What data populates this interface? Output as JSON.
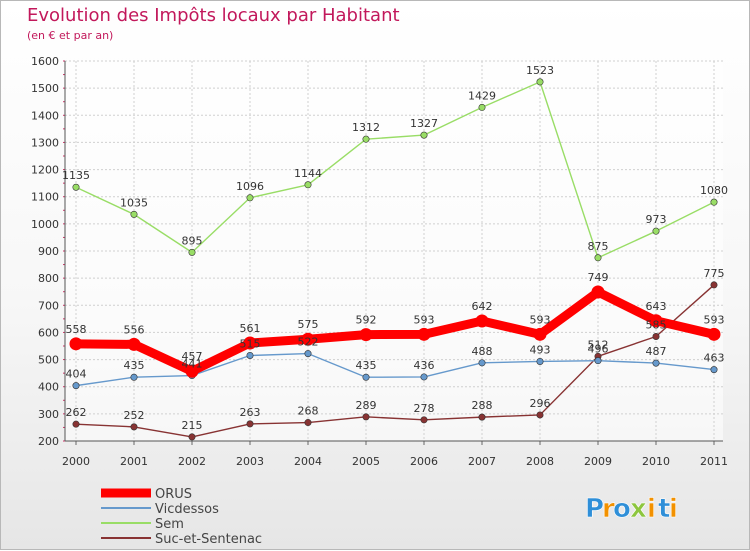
{
  "chart_data": {
    "type": "line",
    "title": "Evolution des Impôts locaux par Habitant",
    "subtitle": "(en € et par an)",
    "xlabel": "",
    "ylabel": "",
    "ylim": [
      200,
      1600
    ],
    "yticks": [
      "200",
      "300",
      "400",
      "500",
      "600",
      "700",
      "800",
      "900",
      "1000",
      "1100",
      "1200",
      "1300",
      "1400",
      "1500",
      "1600"
    ],
    "categories": [
      "2000",
      "2001",
      "2002",
      "2003",
      "2004",
      "2005",
      "2006",
      "2007",
      "2008",
      "2009",
      "2010",
      "2011"
    ],
    "grid": true,
    "legend_position": "bottom-left",
    "series": [
      {
        "name": "ORUS",
        "color": "#ff0000",
        "values": [
          558,
          556,
          457,
          561,
          575,
          592,
          593,
          642,
          593,
          749,
          643,
          593
        ],
        "labels": [
          "558",
          "556",
          "457",
          "561",
          "575",
          "592",
          "593",
          "642",
          "593",
          "749",
          "643",
          "593"
        ]
      },
      {
        "name": "Vicdessos",
        "color": "#6699cc",
        "values": [
          404,
          435,
          441,
          515,
          522,
          435,
          436,
          488,
          493,
          496,
          487,
          463
        ],
        "labels": [
          "404",
          "435",
          "441",
          "515",
          "522",
          "435",
          "436",
          "488",
          "493",
          "496",
          "487",
          "463"
        ]
      },
      {
        "name": "Sem",
        "color": "#99dd66",
        "values": [
          1135,
          1035,
          895,
          1096,
          1144,
          1312,
          1327,
          1429,
          1523,
          875,
          973,
          1080
        ],
        "labels": [
          "1135",
          "1035",
          "895",
          "1096",
          "1144",
          "1312",
          "1327",
          "1429",
          "1523",
          "875",
          "973",
          "1080"
        ]
      },
      {
        "name": "Suc-et-Sentenac",
        "color": "#883333",
        "values": [
          262,
          252,
          215,
          263,
          268,
          289,
          278,
          288,
          296,
          512,
          585,
          775
        ],
        "labels": [
          "262",
          "252",
          "215",
          "263",
          "268",
          "289",
          "278",
          "288",
          "296",
          "512",
          "585",
          "775"
        ]
      }
    ]
  },
  "logo": {
    "text": "Proxiti",
    "letters": [
      {
        "ch": "P",
        "color": "#2f8fd8"
      },
      {
        "ch": "r",
        "color": "#f29100"
      },
      {
        "ch": "o",
        "color": "#2f8fd8"
      },
      {
        "ch": "x",
        "color": "#8dc63f"
      },
      {
        "ch": "i",
        "color": "#f29100"
      },
      {
        "ch": "t",
        "color": "#2f8fd8"
      },
      {
        "ch": "i",
        "color": "#f29100"
      }
    ]
  }
}
